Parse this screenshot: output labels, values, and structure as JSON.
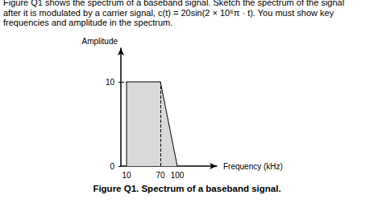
{
  "chart_data": {
    "type": "area",
    "subtitle": [
      "Figure Q1 shows the spectrum of a baseband signal. Sketch the spectrum of the signal",
      "after it is modulated by a carrier signal, c(t) = 20sin(2 × 10⁶π · t). You must show key",
      "frequencies and amplitude in the spectrum."
    ],
    "title": "Figure Q1. Spectrum of a baseband signal.",
    "x_label": "Frequency (kHz)",
    "y_label": "Amplitude",
    "x": [
      10,
      10,
      70,
      100
    ],
    "values": [
      0,
      10,
      10,
      0
    ],
    "color": "#d9d9d9",
    "xlim": [
      0,
      170
    ],
    "xticks": [
      10,
      70,
      100
    ],
    "ylim": [
      0,
      14
    ],
    "yticks": [
      0,
      10
    ],
    "grid": false
  }
}
